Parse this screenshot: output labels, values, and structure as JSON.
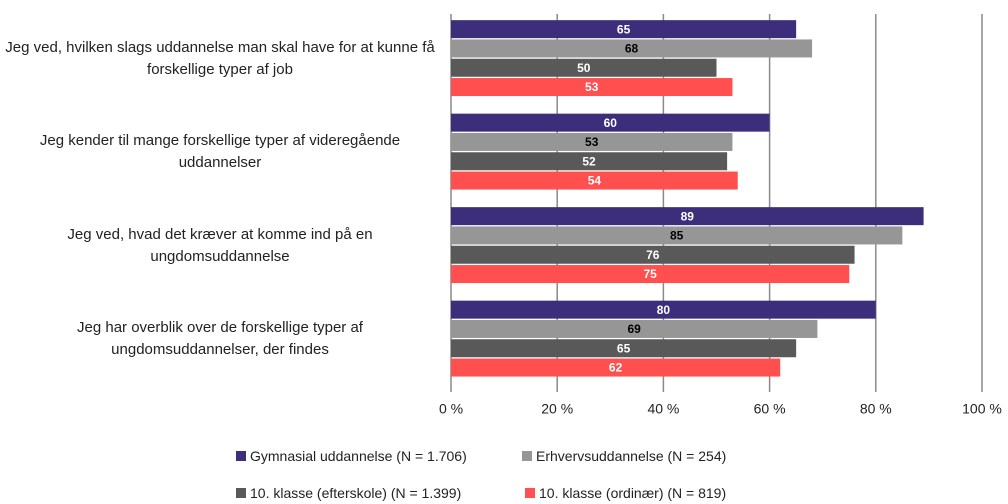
{
  "chart_data": {
    "type": "bar",
    "orientation": "horizontal",
    "categories": [
      "Jeg ved, hvilken slags uddannelse man skal have for at kunne få forskellige typer af job",
      "Jeg kender til mange forskellige typer af videregående uddannelser",
      "Jeg ved, hvad det kræver at komme ind på en ungdomsuddannelse",
      "Jeg har overblik over de forskellige typer af ungdomsuddannelser, der findes"
    ],
    "series": [
      {
        "name": "Gymnasial uddannelse (N = 1.706)",
        "color": "#3d2e7c",
        "label_color": "#ffffff",
        "values": [
          65,
          60,
          89,
          80
        ]
      },
      {
        "name": "Erhvervsuddannelse (N = 254)",
        "color": "#969696",
        "label_color": "#000000",
        "values": [
          68,
          53,
          85,
          69
        ]
      },
      {
        "name": "10. klasse (efterskole) (N = 1.399)",
        "color": "#595959",
        "label_color": "#ffffff",
        "values": [
          50,
          52,
          76,
          65
        ]
      },
      {
        "name": "10. klasse (ordinær) (N = 819)",
        "color": "#ff4f4f",
        "label_color": "#ffffff",
        "values": [
          53,
          54,
          75,
          62
        ]
      }
    ],
    "xlim": [
      0,
      100
    ],
    "xticks": [
      {
        "value": 0,
        "label": "0 %"
      },
      {
        "value": 20,
        "label": "20 %"
      },
      {
        "value": 40,
        "label": "40 %"
      },
      {
        "value": 60,
        "label": "60 %"
      },
      {
        "value": 80,
        "label": "80 %"
      },
      {
        "value": 100,
        "label": "100 %"
      }
    ],
    "grid": true,
    "legend": "bottom"
  }
}
